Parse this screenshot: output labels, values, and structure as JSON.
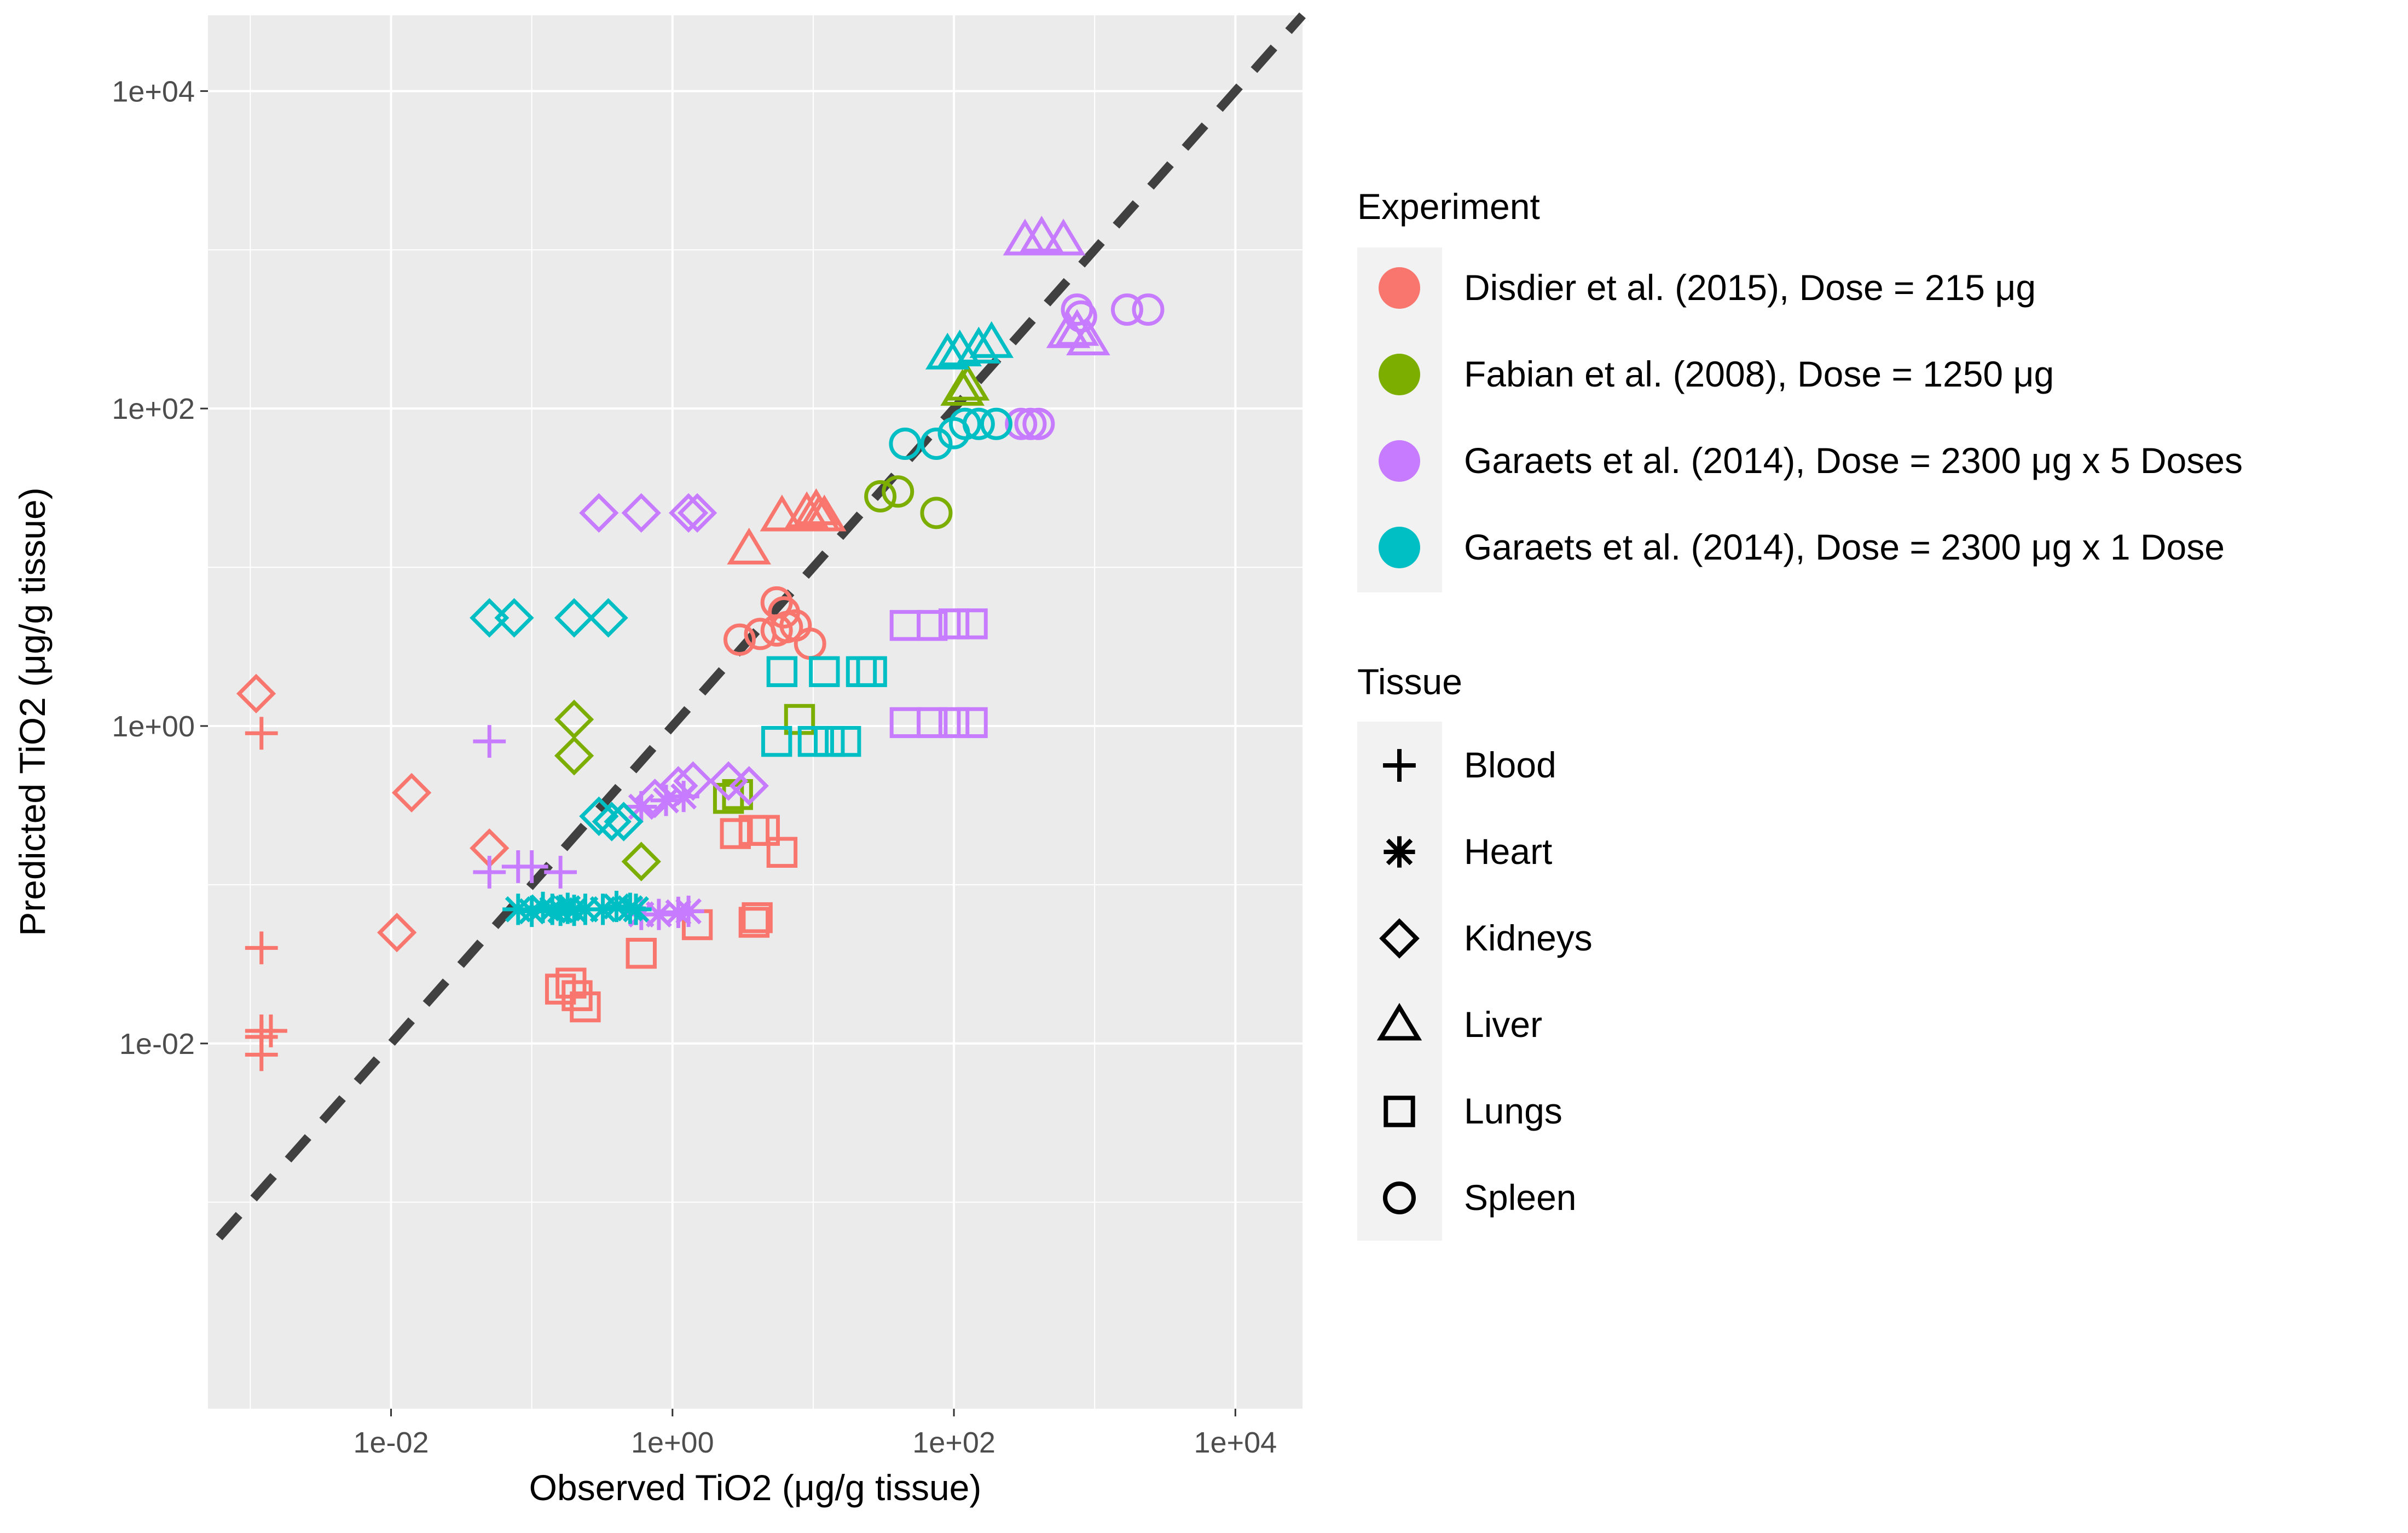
{
  "chart_data": {
    "type": "scatter",
    "xlabel": "Observed TiO2 (μg/g tissue)",
    "ylabel": "Predicted TiO2 (μg/g tissue)",
    "x_scale": "log10",
    "y_scale": "log10",
    "xlim": [
      0.0005,
      30000
    ],
    "ylim": [
      5e-05,
      30000
    ],
    "x_ticks": [
      {
        "value": 0.01,
        "label": "1e-02"
      },
      {
        "value": 1,
        "label": "1e+00"
      },
      {
        "value": 100,
        "label": "1e+02"
      },
      {
        "value": 10000,
        "label": "1e+04"
      }
    ],
    "y_ticks": [
      {
        "value": 0.01,
        "label": "1e-02"
      },
      {
        "value": 1,
        "label": "1e+00"
      },
      {
        "value": 100,
        "label": "1e+02"
      },
      {
        "value": 10000,
        "label": "1e+04"
      }
    ],
    "grid": true,
    "reference_line": {
      "type": "identity",
      "style": "dashed",
      "color": "#404040"
    },
    "legend_position": "right",
    "legends": [
      {
        "title": "Experiment",
        "entries": [
          {
            "label": "Disdier et al. (2015), Dose = 215 μg",
            "color": "#F8766D"
          },
          {
            "label": "Fabian et al. (2008), Dose = 1250 μg",
            "color": "#7CAE00"
          },
          {
            "label": "Garaets et al. (2014), Dose = 2300 μg x 5 Doses",
            "color": "#C77CFF"
          },
          {
            "label": "Garaets et al. (2014), Dose = 2300 μg x 1 Dose",
            "color": "#00BFC4"
          }
        ]
      },
      {
        "title": "Tissue",
        "entries": [
          {
            "label": "Blood",
            "shape": "plus"
          },
          {
            "label": "Heart",
            "shape": "asterisk"
          },
          {
            "label": "Kidneys",
            "shape": "diamond"
          },
          {
            "label": "Liver",
            "shape": "triangle"
          },
          {
            "label": "Lungs",
            "shape": "square"
          },
          {
            "label": "Spleen",
            "shape": "circle"
          }
        ]
      }
    ],
    "series": [
      {
        "experiment": 0,
        "tissue": "Blood",
        "points": [
          [
            0.0012,
            0.9
          ],
          [
            0.0012,
            0.04
          ],
          [
            0.0012,
            0.012
          ],
          [
            0.0014,
            0.012
          ],
          [
            0.0012,
            0.011
          ],
          [
            0.0012,
            0.0085
          ]
        ]
      },
      {
        "experiment": 0,
        "tissue": "Kidneys",
        "points": [
          [
            0.0011,
            1.6
          ],
          [
            0.014,
            0.38
          ],
          [
            0.011,
            0.05
          ],
          [
            0.05,
            0.17
          ]
        ]
      },
      {
        "experiment": 0,
        "tissue": "Liver",
        "points": [
          [
            3.5,
            13
          ],
          [
            6,
            21
          ],
          [
            9,
            22
          ],
          [
            10.5,
            23
          ],
          [
            11,
            21
          ],
          [
            12,
            21
          ]
        ]
      },
      {
        "experiment": 0,
        "tissue": "Lungs",
        "points": [
          [
            0.16,
            0.022
          ],
          [
            0.19,
            0.024
          ],
          [
            0.21,
            0.02
          ],
          [
            0.24,
            0.017
          ],
          [
            0.6,
            0.037
          ],
          [
            1.5,
            0.056
          ],
          [
            2.8,
            0.21
          ],
          [
            3.8,
            0.22
          ],
          [
            4.5,
            0.22
          ],
          [
            6,
            0.16
          ],
          [
            4,
            0.062
          ],
          [
            3.8,
            0.058
          ]
        ]
      },
      {
        "experiment": 0,
        "tissue": "Spleen",
        "points": [
          [
            3,
            3.5
          ],
          [
            4.2,
            3.8
          ],
          [
            5.5,
            6
          ],
          [
            6.2,
            5.2
          ],
          [
            6.5,
            4.2
          ],
          [
            5.5,
            4
          ],
          [
            7.5,
            4.3
          ],
          [
            9.5,
            3.3
          ]
        ]
      },
      {
        "experiment": 1,
        "tissue": "Kidneys",
        "points": [
          [
            0.2,
            1.1
          ],
          [
            0.2,
            0.65
          ],
          [
            0.6,
            0.14
          ]
        ]
      },
      {
        "experiment": 1,
        "tissue": "Liver",
        "points": [
          [
            115,
            130
          ],
          [
            125,
            140
          ]
        ]
      },
      {
        "experiment": 1,
        "tissue": "Lungs",
        "points": [
          [
            2.5,
            0.35
          ],
          [
            2.9,
            0.37
          ],
          [
            8,
            1.1
          ]
        ]
      },
      {
        "experiment": 1,
        "tissue": "Spleen",
        "points": [
          [
            30,
            28
          ],
          [
            40,
            30
          ],
          [
            75,
            22
          ]
        ]
      },
      {
        "experiment": 2,
        "tissue": "Blood",
        "points": [
          [
            0.05,
            0.8
          ],
          [
            0.05,
            0.12
          ],
          [
            0.08,
            0.13
          ],
          [
            0.1,
            0.13
          ],
          [
            0.16,
            0.12
          ]
        ]
      },
      {
        "experiment": 2,
        "tissue": "Heart",
        "points": [
          [
            0.6,
            0.31
          ],
          [
            0.9,
            0.34
          ],
          [
            1.2,
            0.36
          ],
          [
            0.6,
            0.065
          ],
          [
            0.8,
            0.065
          ],
          [
            1.1,
            0.067
          ],
          [
            1.3,
            0.068
          ]
        ]
      },
      {
        "experiment": 2,
        "tissue": "Kidneys",
        "points": [
          [
            0.3,
            22
          ],
          [
            0.6,
            22
          ],
          [
            1.3,
            22
          ],
          [
            1.5,
            22
          ],
          [
            0.75,
            0.35
          ],
          [
            1.1,
            0.42
          ],
          [
            1.4,
            0.45
          ],
          [
            2.5,
            0.45
          ],
          [
            3.5,
            0.42
          ]
        ]
      },
      {
        "experiment": 2,
        "tissue": "Liver",
        "points": [
          [
            320,
            1150
          ],
          [
            420,
            1200
          ],
          [
            600,
            1150
          ],
          [
            650,
            300
          ],
          [
            750,
            310
          ],
          [
            900,
            270
          ]
        ]
      },
      {
        "experiment": 2,
        "tissue": "Lungs",
        "points": [
          [
            45,
            4.3
          ],
          [
            70,
            4.3
          ],
          [
            100,
            4.4
          ],
          [
            135,
            4.4
          ],
          [
            45,
            1.05
          ],
          [
            70,
            1.05
          ],
          [
            100,
            1.05
          ],
          [
            135,
            1.05
          ]
        ]
      },
      {
        "experiment": 2,
        "tissue": "Spleen",
        "points": [
          [
            300,
            80
          ],
          [
            350,
            80
          ],
          [
            400,
            80
          ],
          [
            750,
            420
          ],
          [
            800,
            380
          ],
          [
            1700,
            420
          ],
          [
            2400,
            420
          ]
        ]
      },
      {
        "experiment": 3,
        "tissue": "Heart",
        "points": [
          [
            0.08,
            0.07
          ],
          [
            0.1,
            0.068
          ],
          [
            0.12,
            0.072
          ],
          [
            0.14,
            0.07
          ],
          [
            0.16,
            0.069
          ],
          [
            0.18,
            0.071
          ],
          [
            0.2,
            0.069
          ],
          [
            0.24,
            0.07
          ],
          [
            0.32,
            0.07
          ],
          [
            0.4,
            0.073
          ],
          [
            0.5,
            0.071
          ],
          [
            0.55,
            0.07
          ]
        ]
      },
      {
        "experiment": 3,
        "tissue": "Kidneys",
        "points": [
          [
            0.05,
            4.8
          ],
          [
            0.075,
            4.8
          ],
          [
            0.2,
            4.8
          ],
          [
            0.35,
            4.8
          ],
          [
            0.3,
            0.27
          ],
          [
            0.37,
            0.25
          ],
          [
            0.45,
            0.25
          ]
        ]
      },
      {
        "experiment": 3,
        "tissue": "Liver",
        "points": [
          [
            90,
            220
          ],
          [
            110,
            230
          ],
          [
            150,
            240
          ],
          [
            185,
            260
          ]
        ]
      },
      {
        "experiment": 3,
        "tissue": "Lungs",
        "points": [
          [
            6,
            2.2
          ],
          [
            12,
            2.2
          ],
          [
            22,
            2.2
          ],
          [
            26,
            2.2
          ],
          [
            5.5,
            0.8
          ],
          [
            10,
            0.8
          ],
          [
            13,
            0.8
          ],
          [
            17,
            0.8
          ]
        ]
      },
      {
        "experiment": 3,
        "tissue": "Spleen",
        "points": [
          [
            45,
            60
          ],
          [
            75,
            60
          ],
          [
            100,
            70
          ],
          [
            120,
            80
          ],
          [
            150,
            80
          ],
          [
            200,
            80
          ]
        ]
      }
    ]
  }
}
